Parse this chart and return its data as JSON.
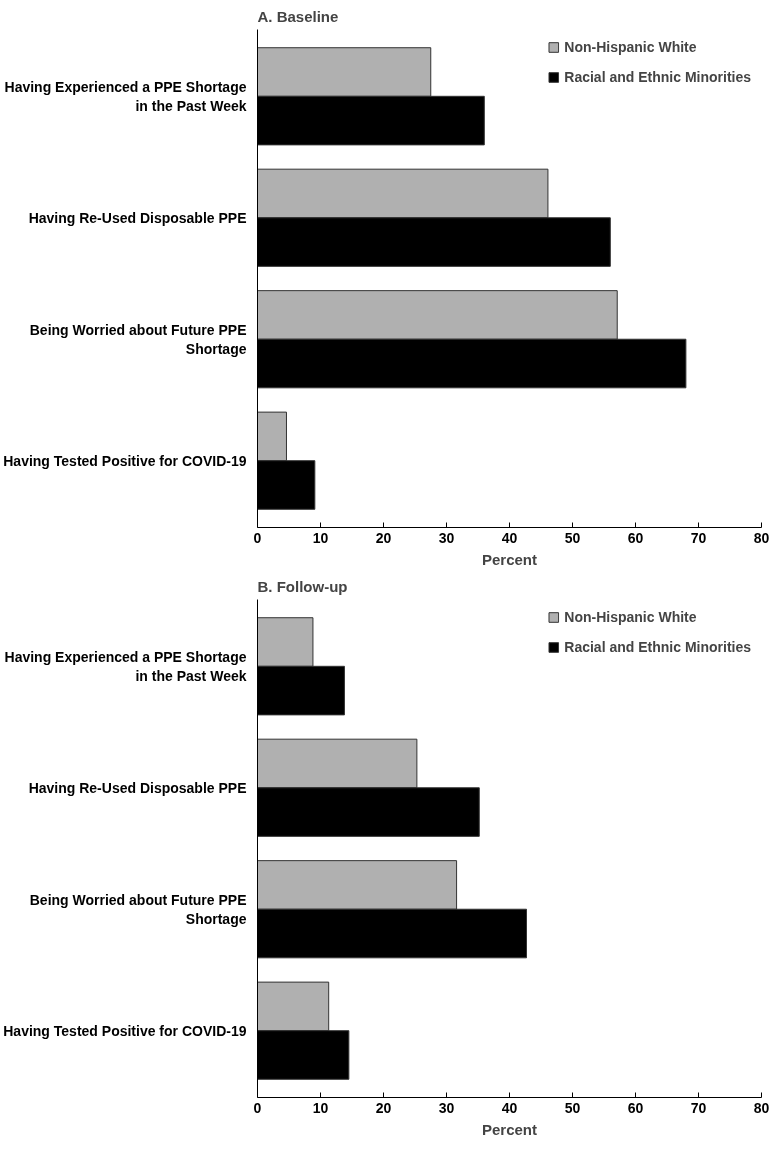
{
  "chart_data": [
    {
      "type": "bar",
      "orientation": "horizontal",
      "title": "A. Baseline",
      "xlabel": "Percent",
      "categories": [
        "Having Experienced a PPE Shortage in the Past Week",
        "Having Re-Used Disposable PPE",
        "Being Worried about Future PPE Shortage",
        "Having Tested Positive for COVID-19"
      ],
      "series": [
        {
          "name": "Non-Hispanic White",
          "color": "#b0b0b0",
          "values": [
            27.5,
            46.1,
            57.1,
            4.6
          ]
        },
        {
          "name": "Racial and Ethnic Minorities",
          "color": "#000000",
          "values": [
            36.0,
            56.0,
            68.0,
            9.1
          ]
        }
      ],
      "xlim": [
        0,
        80
      ],
      "xticks": [
        0,
        10,
        20,
        30,
        40,
        50,
        60,
        70,
        80
      ],
      "grid": false,
      "legend": "top right"
    },
    {
      "type": "bar",
      "orientation": "horizontal",
      "title": "B. Follow-up",
      "xlabel": "Percent",
      "categories": [
        "Having Experienced a PPE Shortage in the Past Week",
        "Having Re-Used Disposable PPE",
        "Being Worried about Future PPE Shortage",
        "Having Tested Positive for COVID-19"
      ],
      "series": [
        {
          "name": "Non-Hispanic White",
          "color": "#b0b0b0",
          "values": [
            8.8,
            25.3,
            31.6,
            11.3
          ]
        },
        {
          "name": "Racial and Ethnic Minorities",
          "color": "#000000",
          "values": [
            13.8,
            35.2,
            42.7,
            14.5
          ]
        }
      ],
      "xlim": [
        0,
        80
      ],
      "xticks": [
        0,
        10,
        20,
        30,
        40,
        50,
        60,
        70,
        80
      ],
      "grid": false,
      "legend": "top right"
    }
  ]
}
